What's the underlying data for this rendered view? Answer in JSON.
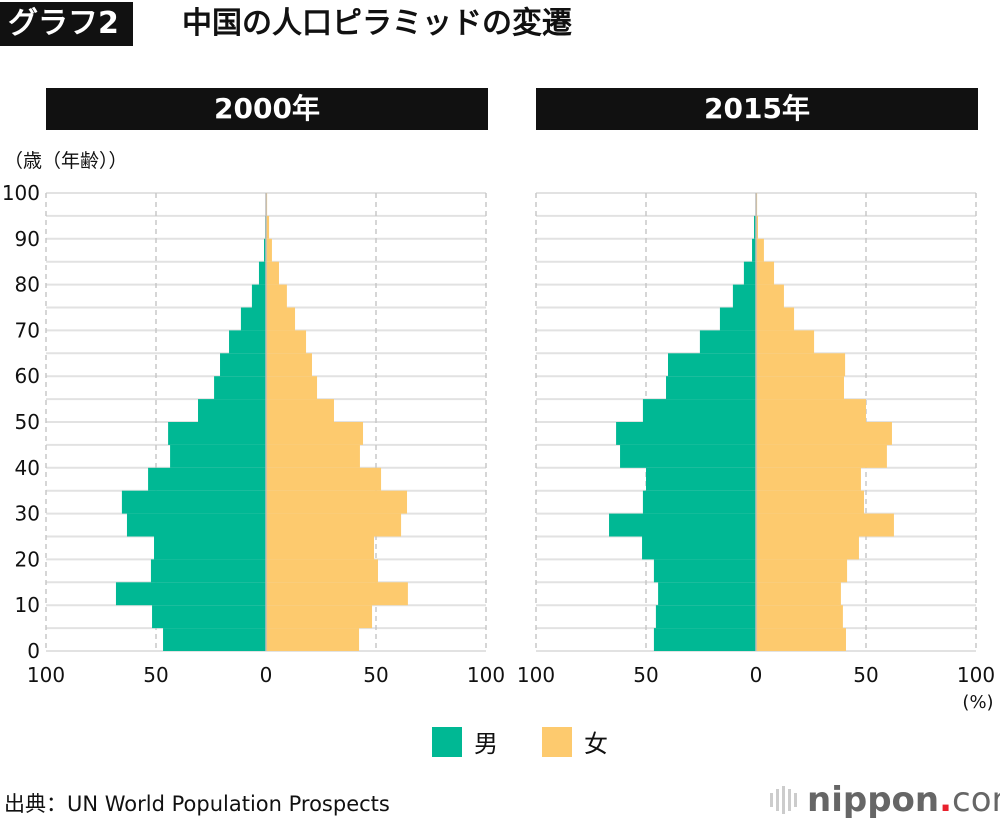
{
  "header": {
    "tag": "グラフ2",
    "title": "中国の人口ピラミッドの変遷"
  },
  "legend": {
    "male": "男",
    "female": "女"
  },
  "source": "出典：UN World Population Prospects",
  "logo": {
    "text": "nippon",
    "dot": ".",
    "domain": "com"
  },
  "colors": {
    "male": "#00b894",
    "female": "#fdca6e"
  },
  "chart_data": [
    {
      "type": "bar",
      "title": "2000年",
      "ylabel": "（歳（年齢））",
      "unit": "(%)",
      "age_groups": [
        "0",
        "5",
        "10",
        "15",
        "20",
        "25",
        "30",
        "35",
        "40",
        "45",
        "50",
        "55",
        "60",
        "65",
        "70",
        "75",
        "80",
        "85",
        "90",
        "95"
      ],
      "xticks": [
        "100",
        "50",
        "0",
        "50",
        "100"
      ],
      "yticks": [
        "0",
        "10",
        "20",
        "30",
        "40",
        "50",
        "60",
        "70",
        "80",
        "90",
        "100"
      ],
      "xlim": [
        -100,
        100
      ],
      "ylim": [
        0,
        100
      ],
      "series": [
        {
          "name": "男",
          "values": [
            46.8,
            51.8,
            68.2,
            52.3,
            50.9,
            63.2,
            65.5,
            53.6,
            43.6,
            44.5,
            30.9,
            23.6,
            20.9,
            16.8,
            11.4,
            6.4,
            3.2,
            0.9,
            0.4,
            0.1
          ]
        },
        {
          "name": "女",
          "values": [
            42.3,
            48.2,
            64.5,
            50.9,
            49.1,
            61.4,
            64.1,
            52.3,
            42.7,
            44.1,
            30.9,
            23.2,
            20.9,
            18.2,
            13.2,
            9.5,
            5.9,
            2.7,
            1.4,
            0.5
          ]
        }
      ]
    },
    {
      "type": "bar",
      "title": "2015年",
      "unit": "(%)",
      "age_groups": [
        "0",
        "5",
        "10",
        "15",
        "20",
        "25",
        "30",
        "35",
        "40",
        "45",
        "50",
        "55",
        "60",
        "65",
        "70",
        "75",
        "80",
        "85",
        "90",
        "95"
      ],
      "xticks": [
        "100",
        "50",
        "0",
        "50",
        "100"
      ],
      "xlim": [
        -100,
        100
      ],
      "ylim": [
        0,
        100
      ],
      "series": [
        {
          "name": "男",
          "values": [
            46.4,
            45.5,
            44.5,
            46.4,
            51.8,
            66.8,
            51.4,
            50.0,
            61.8,
            63.6,
            51.4,
            40.9,
            40.0,
            25.5,
            16.4,
            10.5,
            5.5,
            1.8,
            0.9,
            0.2
          ]
        },
        {
          "name": "女",
          "values": [
            40.9,
            39.5,
            38.6,
            41.4,
            46.8,
            62.7,
            49.1,
            47.7,
            59.5,
            61.8,
            50.0,
            40.0,
            40.5,
            26.4,
            17.3,
            12.7,
            8.2,
            3.6,
            0.9,
            0.5
          ]
        }
      ]
    }
  ]
}
